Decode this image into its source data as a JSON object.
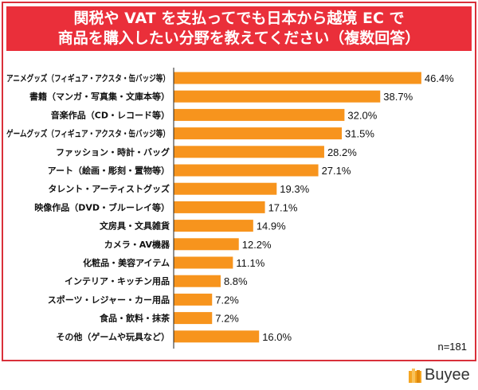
{
  "chart_data": {
    "type": "bar",
    "orientation": "horizontal",
    "title": "関税や VAT を支払ってでも日本から越境 EC で\n商品を購入したい分野を教えてください（複数回答）",
    "title_lines": [
      "関税や VAT を支払ってでも日本から越境 EC で",
      "商品を購入したい分野を教えてください（複数回答）"
    ],
    "categories": [
      "アニメグッズ（フィギュア・アクスタ・缶バッジ等）",
      "書籍（マンガ・写真集・文庫本等）",
      "音楽作品（CD・レコード等）",
      "ゲームグッズ（フィギュア・アクスタ・缶バッジ等）",
      "ファッション・時計・バッグ",
      "アート（絵画・彫刻・置物等）",
      "タレント・アーティストグッズ",
      "映像作品（DVD・ブルーレイ等）",
      "文房具・文具雑貨",
      "カメラ・AV機器",
      "化粧品・美容アイテム",
      "インテリア・キッチン用品",
      "スポーツ・レジャー・カー用品",
      "食品・飲料・抹茶",
      "その他（ゲームや玩具など）"
    ],
    "values": [
      46.4,
      38.7,
      32.0,
      31.5,
      28.2,
      27.1,
      19.3,
      17.1,
      14.9,
      12.2,
      11.1,
      8.8,
      7.2,
      7.2,
      16.0
    ],
    "data_labels": [
      "46.4%",
      "38.7%",
      "32.0%",
      "31.5%",
      "28.2%",
      "27.1%",
      "19.3%",
      "17.1%",
      "14.9%",
      "12.2%",
      "11.1%",
      "8.8%",
      "7.2%",
      "7.2%",
      "16.0%"
    ],
    "xlim": [
      0,
      50
    ],
    "grid": false,
    "bar_color": "#f7941d",
    "note": "n=181"
  },
  "colors": {
    "frame": "#d9303a",
    "banner": "#ea2f3a",
    "bar": "#f7941d"
  },
  "brand": {
    "name": "Buyee",
    "logo_color": "#f5a623"
  }
}
